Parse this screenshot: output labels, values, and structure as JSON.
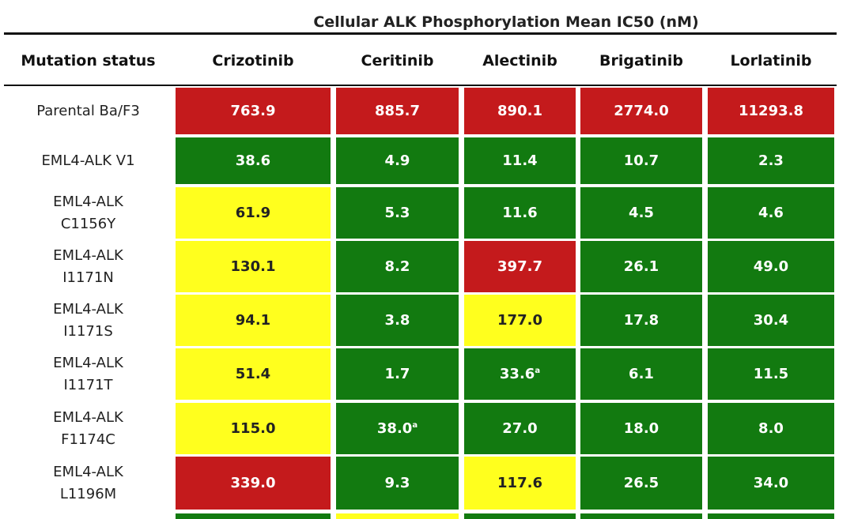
{
  "title": "Cellular ALK Phosphorylation Mean IC50 (nM)",
  "table": {
    "header": [
      "Mutation status",
      "Crizotinib",
      "Ceritinib",
      "Alectinib",
      "Brigatinib",
      "Lorlatinib"
    ],
    "rows": [
      {
        "label": [
          "Parental Ba/F3"
        ],
        "cells": [
          {
            "text": "763.9",
            "color": "red"
          },
          {
            "text": "885.7",
            "color": "red"
          },
          {
            "text": "890.1",
            "color": "red"
          },
          {
            "text": "2774.0",
            "color": "red"
          },
          {
            "text": "11293.8",
            "color": "red"
          }
        ]
      },
      {
        "label": [
          "EML4-ALK  V1"
        ],
        "cells": [
          {
            "text": "38.6",
            "color": "green"
          },
          {
            "text": "4.9",
            "color": "green"
          },
          {
            "text": "11.4",
            "color": "green"
          },
          {
            "text": "10.7",
            "color": "green"
          },
          {
            "text": "2.3",
            "color": "green"
          }
        ]
      },
      {
        "label": [
          "EML4-ALK",
          "C1156Y"
        ],
        "cells": [
          {
            "text": "61.9",
            "color": "yellow"
          },
          {
            "text": "5.3",
            "color": "green"
          },
          {
            "text": "11.6",
            "color": "green"
          },
          {
            "text": "4.5",
            "color": "green"
          },
          {
            "text": "4.6",
            "color": "green"
          }
        ]
      },
      {
        "label": [
          "EML4-ALK",
          "I1171N"
        ],
        "cells": [
          {
            "text": "130.1",
            "color": "yellow"
          },
          {
            "text": "8.2",
            "color": "green"
          },
          {
            "text": "397.7",
            "color": "red"
          },
          {
            "text": "26.1",
            "color": "green"
          },
          {
            "text": "49.0",
            "color": "green"
          }
        ]
      },
      {
        "label": [
          "EML4-ALK",
          "I1171S"
        ],
        "cells": [
          {
            "text": "94.1",
            "color": "yellow"
          },
          {
            "text": "3.8",
            "color": "green"
          },
          {
            "text": "177.0",
            "color": "yellow"
          },
          {
            "text": "17.8",
            "color": "green"
          },
          {
            "text": "30.4",
            "color": "green"
          }
        ]
      },
      {
        "label": [
          "EML4-ALK",
          "I1171T"
        ],
        "cells": [
          {
            "text": "51.4",
            "color": "yellow"
          },
          {
            "text": "1.7",
            "color": "green"
          },
          {
            "text": "33.6",
            "note": "a",
            "color": "green"
          },
          {
            "text": "6.1",
            "color": "green"
          },
          {
            "text": "11.5",
            "color": "green"
          }
        ]
      },
      {
        "label": [
          "EML4-ALK",
          "F1174C"
        ],
        "cells": [
          {
            "text": "115.0",
            "color": "yellow"
          },
          {
            "text": "38.0",
            "note": "a",
            "color": "green"
          },
          {
            "text": "27.0",
            "color": "green"
          },
          {
            "text": "18.0",
            "color": "green"
          },
          {
            "text": "8.0",
            "color": "green"
          }
        ]
      },
      {
        "label": [
          "EML4-ALK",
          "L1196M"
        ],
        "cells": [
          {
            "text": "339.0",
            "color": "red"
          },
          {
            "text": "9.3",
            "color": "green"
          },
          {
            "text": "117.6",
            "color": "yellow"
          },
          {
            "text": "26.5",
            "color": "green"
          },
          {
            "text": "34.0",
            "color": "green"
          }
        ]
      }
    ]
  }
}
